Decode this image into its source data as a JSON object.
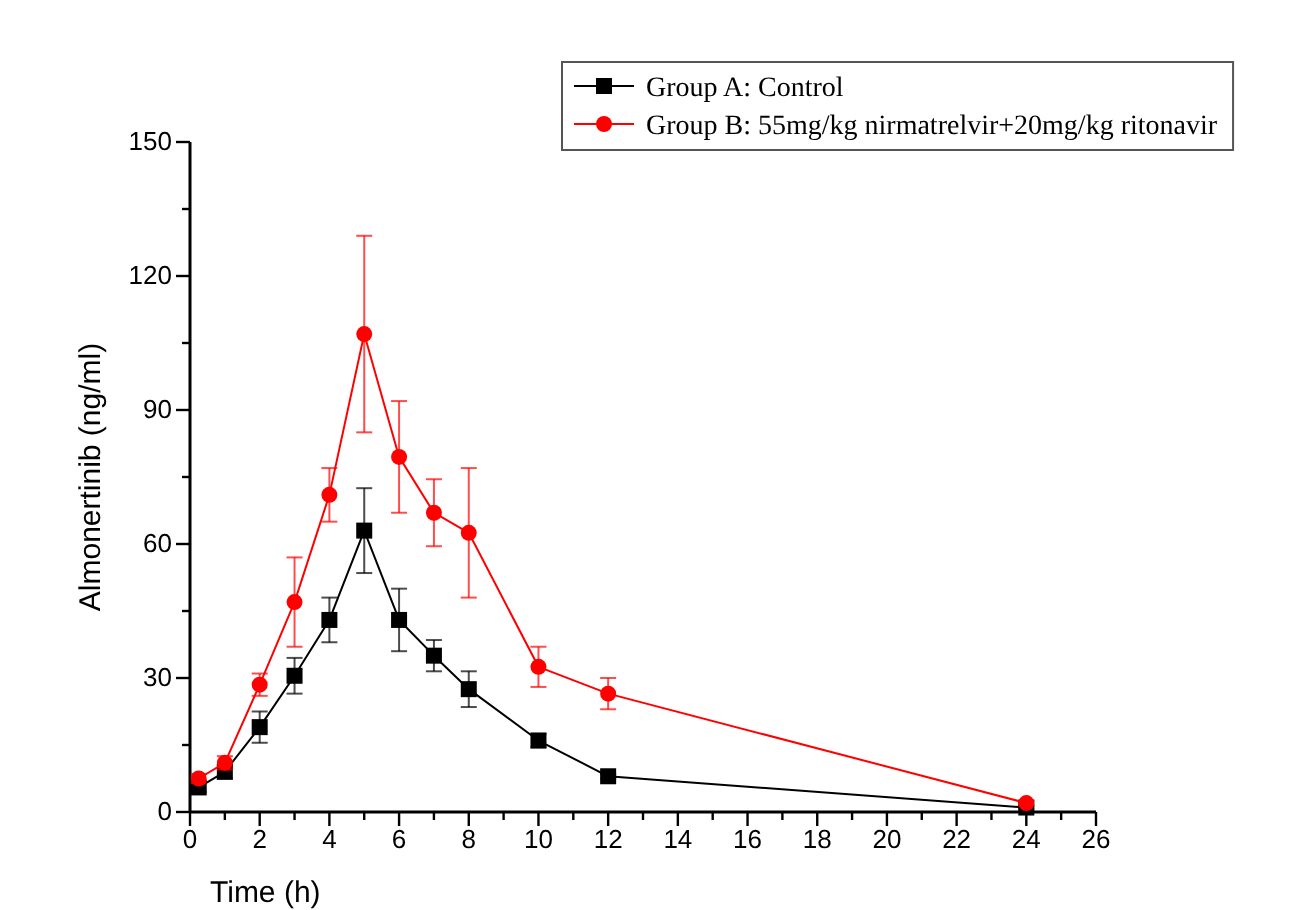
{
  "chart_data": {
    "type": "line",
    "xlabel": "Time (h)",
    "ylabel": "Almonertinib (ng/ml)",
    "xlim": [
      0,
      26
    ],
    "ylim": [
      0,
      150
    ],
    "xticks": [
      0,
      {
        "value": 1,
        "label": null
      },
      2,
      {
        "value": 3,
        "label": null
      },
      4,
      {
        "value": 5,
        "label": null
      },
      6,
      {
        "value": 7,
        "label": null
      },
      8,
      {
        "value": 9,
        "label": null
      },
      10,
      {
        "value": 11,
        "label": null
      },
      12,
      {
        "value": 13,
        "label": null
      },
      14,
      {
        "value": 15,
        "label": null
      },
      16,
      {
        "value": 17,
        "label": null
      },
      18,
      {
        "value": 19,
        "label": null
      },
      20,
      {
        "value": 21,
        "label": null
      },
      22,
      {
        "value": 23,
        "label": null
      },
      24,
      {
        "value": 25,
        "label": null
      },
      26
    ],
    "yticks": [
      0,
      {
        "value": 15,
        "label": null
      },
      30,
      {
        "value": 45,
        "label": null
      },
      60,
      {
        "value": 75,
        "label": null
      },
      90,
      {
        "value": 105,
        "label": null
      },
      120,
      {
        "value": 135,
        "label": null
      },
      150
    ],
    "x": [
      0.25,
      1,
      2,
      3,
      4,
      5,
      6,
      7,
      8,
      10,
      12,
      24
    ],
    "legend": "top right",
    "grid": false,
    "line_style": "solid",
    "series": [
      {
        "name": "Group A: Control",
        "color": "#000000",
        "marker": "square",
        "values": [
          5.5,
          9,
          19,
          30.5,
          43,
          63,
          43,
          35,
          27.5,
          16,
          8,
          1
        ],
        "errors": [
          1,
          1.5,
          3.5,
          4,
          5,
          9.5,
          7,
          3.5,
          4,
          1.5,
          0.5,
          0.3
        ]
      },
      {
        "name": "Group B: 55mg/kg nirmatrelvir+20mg/kg ritonavir",
        "color": "#ff0000",
        "marker": "circle",
        "values": [
          7.5,
          11,
          28.5,
          47,
          71,
          107,
          79.5,
          67,
          62.5,
          32.5,
          26.5,
          2
        ],
        "errors": [
          1,
          1.5,
          2.5,
          10,
          6,
          22,
          12.5,
          7.5,
          14.5,
          4.5,
          3.5,
          0.5
        ]
      }
    ]
  }
}
